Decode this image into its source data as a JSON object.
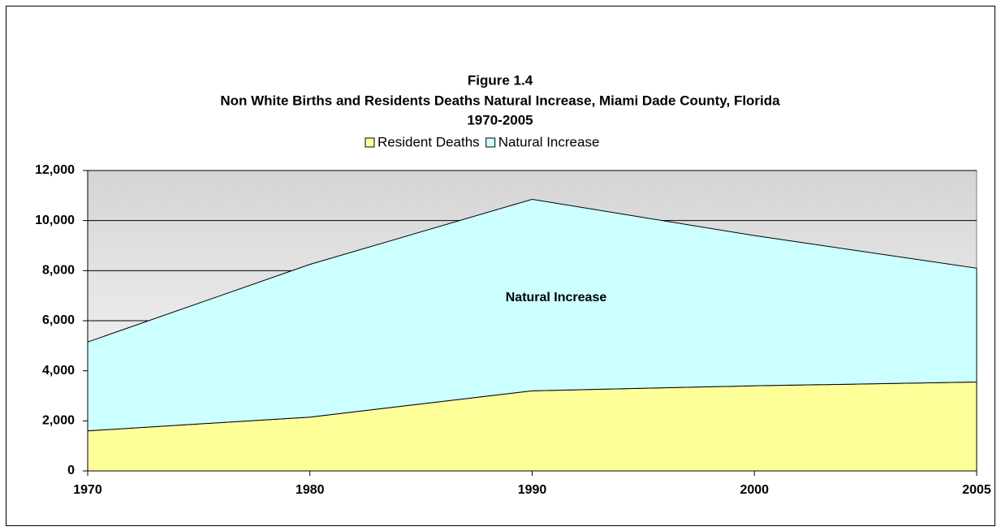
{
  "chart_data": {
    "type": "stacked_area",
    "title": [
      "Figure 1.4",
      "Non White Births and Residents Deaths Natural Increase, Miami Dade County, Florida",
      "1970-2005"
    ],
    "categories": [
      "1970",
      "1980",
      "1990",
      "2000",
      "2005"
    ],
    "series": [
      {
        "name": "Resident Deaths",
        "color": "#ffff99",
        "values": [
          1600,
          2150,
          3200,
          3400,
          3550
        ]
      },
      {
        "name": "Natural Increase",
        "color": "#ccffff",
        "values": [
          3550,
          6100,
          7650,
          6000,
          4550
        ]
      }
    ],
    "annotation": "Natural Increase",
    "ylim": [
      0,
      12000
    ],
    "yticks": [
      0,
      {
        "value": 2000,
        "label": "2,000"
      },
      {
        "value": 4000,
        "label": "4,000"
      },
      {
        "value": 6000,
        "label": "6,000"
      },
      {
        "value": 8000,
        "label": "8,000"
      },
      {
        "value": 10000,
        "label": "10,000"
      },
      {
        "value": 12000,
        "label": "12,000"
      }
    ],
    "grid": true,
    "legend": "top"
  }
}
